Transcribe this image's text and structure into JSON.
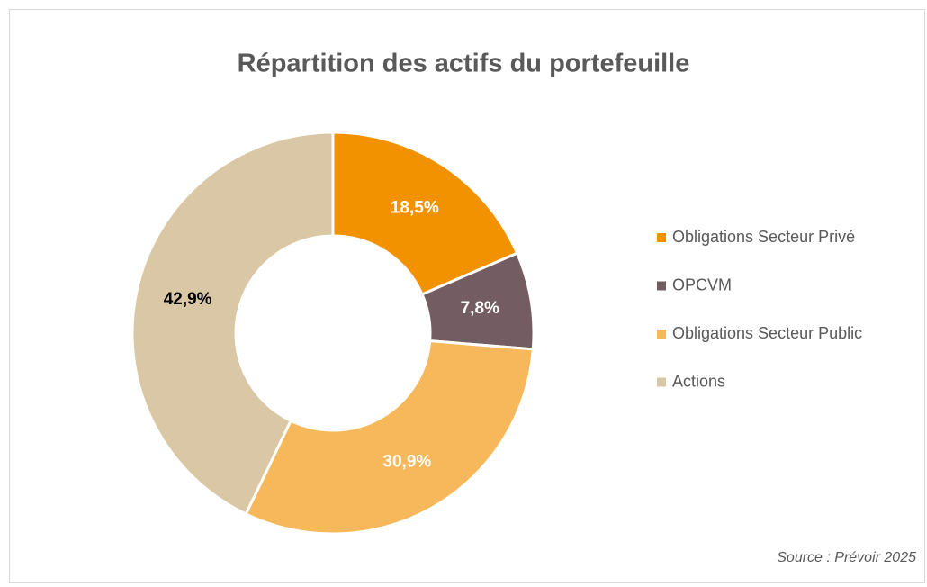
{
  "chart_data": {
    "type": "donut",
    "title": "Répartition des actifs du portefeuille",
    "categories": [
      "Obligations Secteur Privé",
      "OPCVM",
      "Obligations Secteur Public",
      "Actions"
    ],
    "values": [
      18.5,
      7.8,
      30.9,
      42.9
    ],
    "value_labels": [
      "18,5%",
      "7,8%",
      "30,9%",
      "42,9%"
    ],
    "colors": [
      "#f39200",
      "#735c62",
      "#f6b85a",
      "#d9c7a5"
    ],
    "label_colors": [
      "#ffffff",
      "#ffffff",
      "#ffffff",
      "#000000"
    ],
    "legend": "right",
    "source": "Source : Prévoir 2025"
  }
}
